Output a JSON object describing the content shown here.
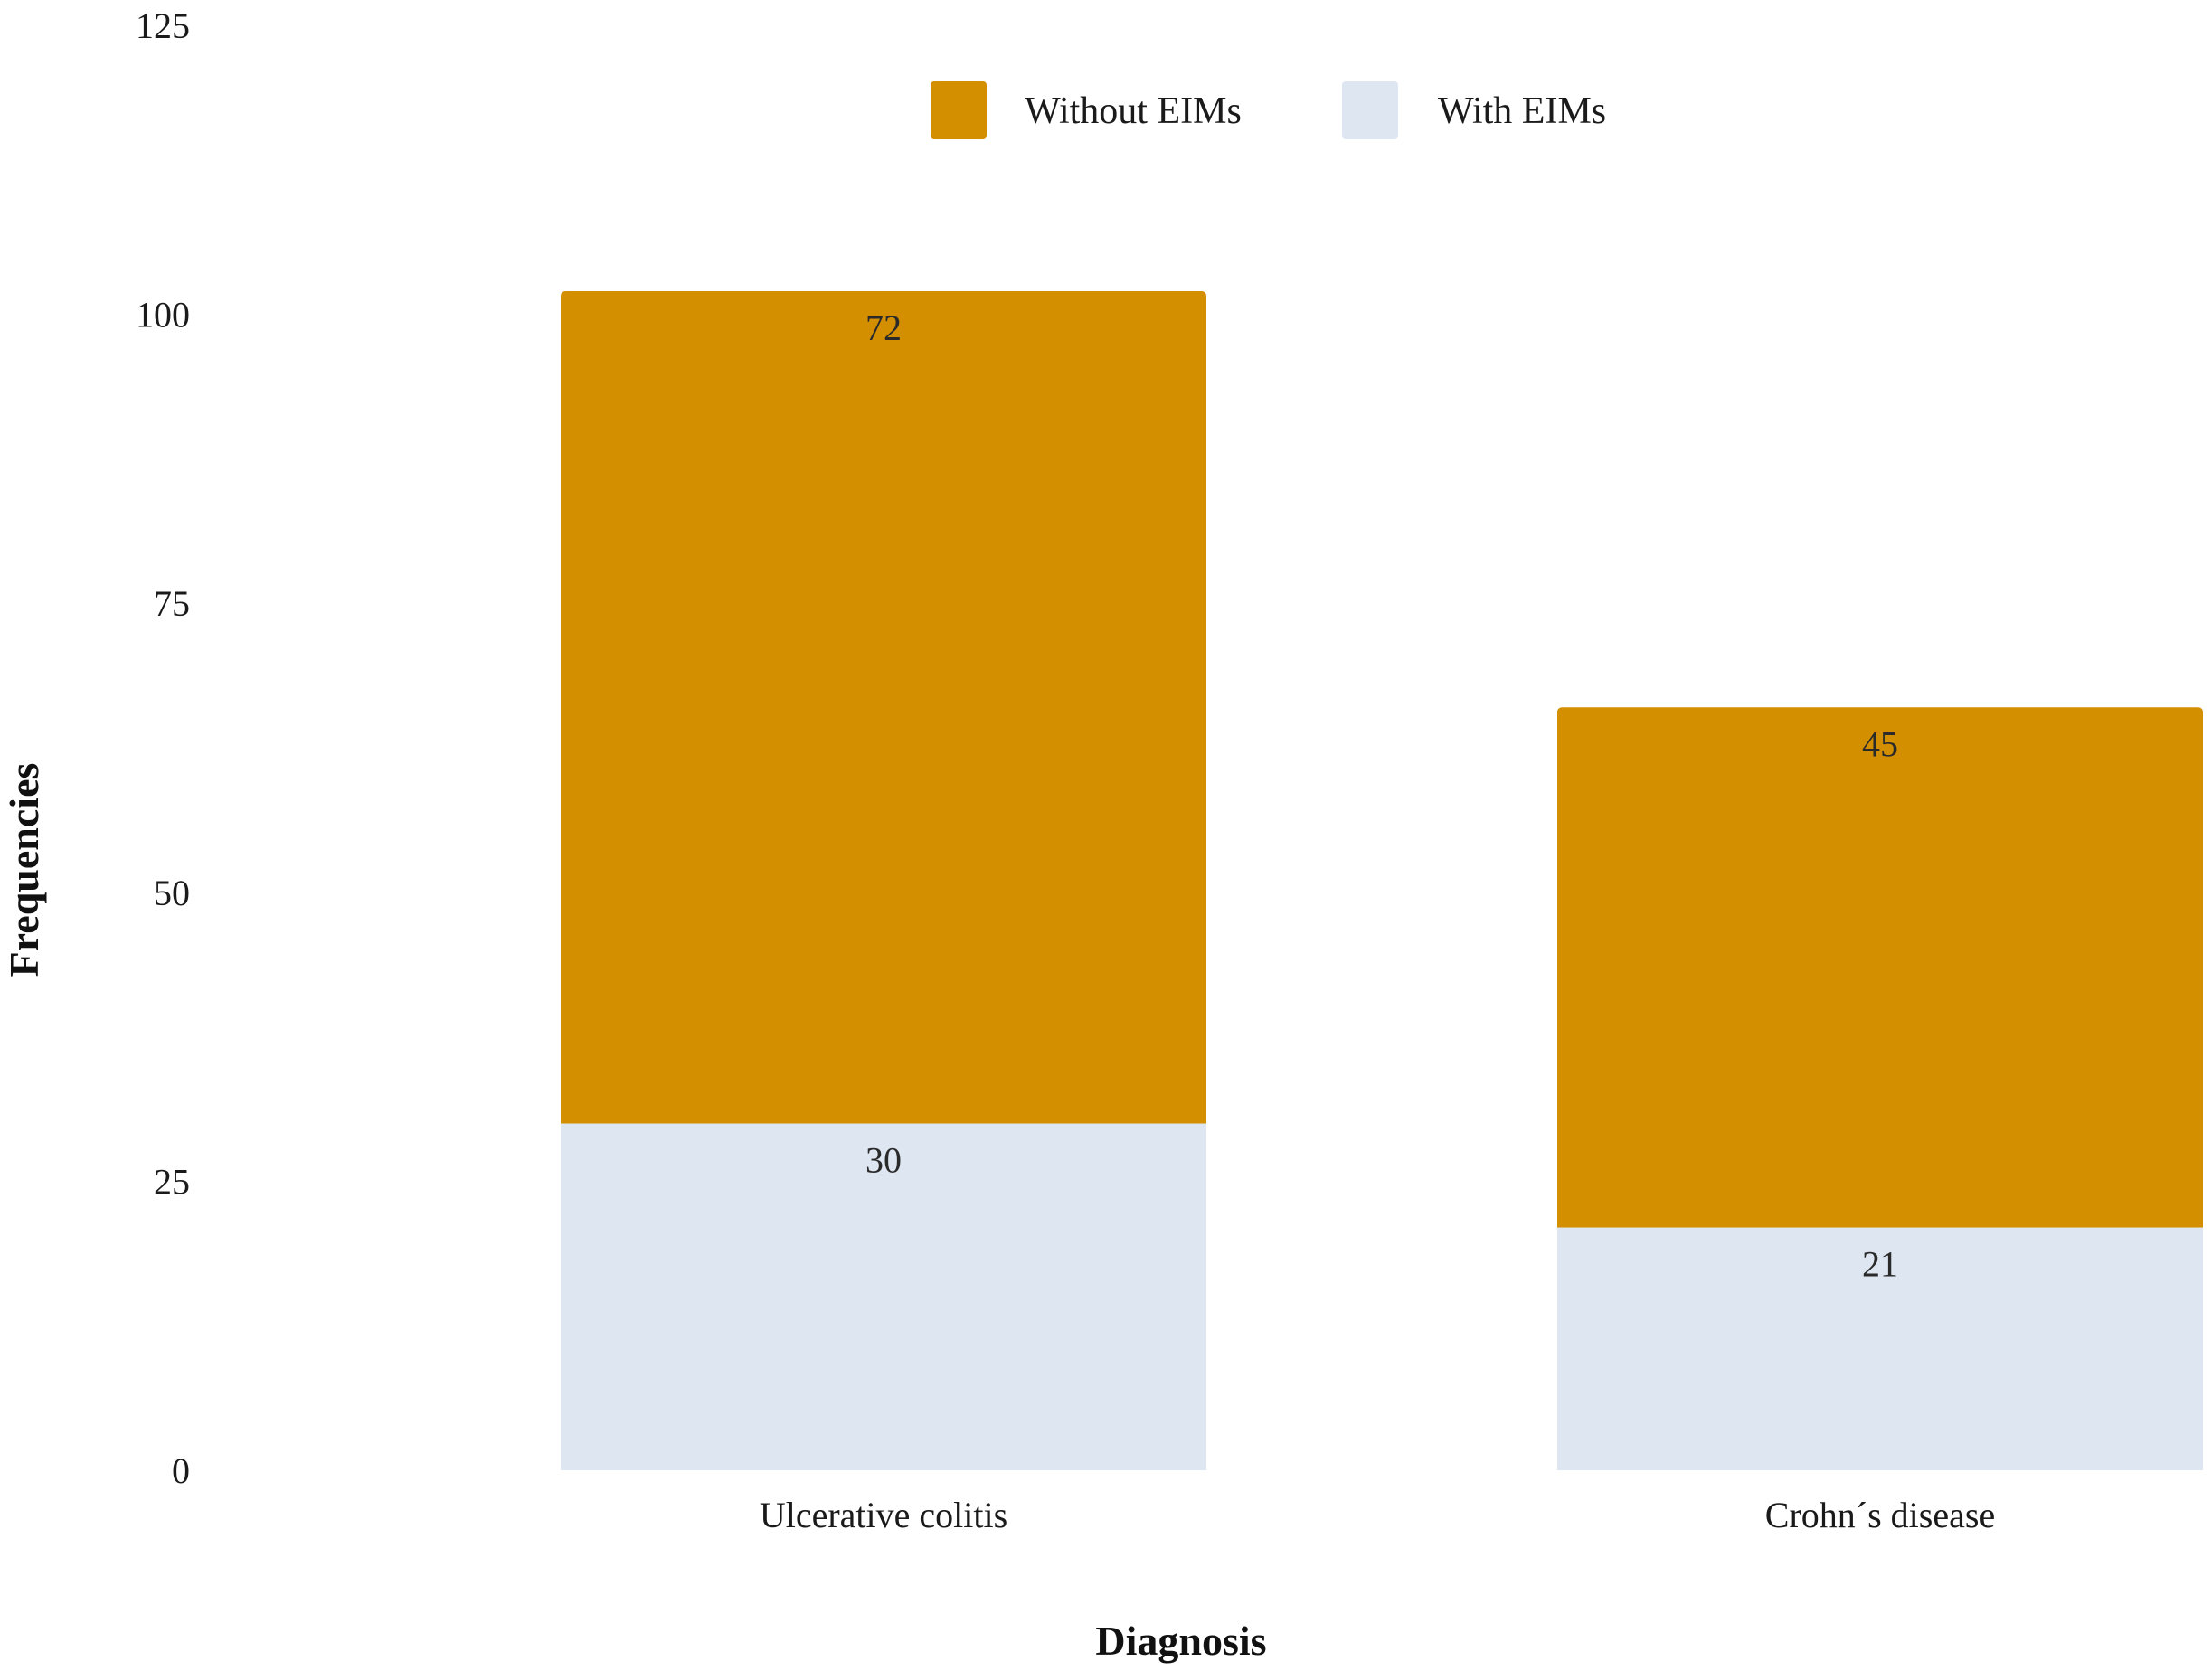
{
  "chart_data": {
    "type": "bar",
    "stacked": true,
    "title": "",
    "xlabel": "Diagnosis",
    "ylabel": "Frequencies",
    "ylim": [
      0,
      125
    ],
    "yticks": [
      "0",
      "25",
      "50",
      "75",
      "100",
      "125"
    ],
    "grid": false,
    "legend_position": "top",
    "categories": [
      "Ulcerative colitis",
      "Crohn´s disease"
    ],
    "series": [
      {
        "name": "With EIMs",
        "values": [
          30,
          21
        ],
        "color": "#dde6f1"
      },
      {
        "name": "Without EIMs",
        "values": [
          72,
          45
        ],
        "color": "#d48f00"
      }
    ],
    "legend_order": [
      "Without EIMs",
      "With EIMs"
    ]
  }
}
